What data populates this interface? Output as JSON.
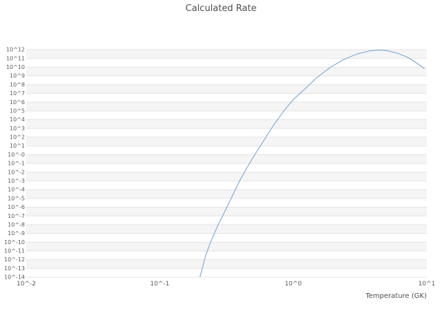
{
  "chart_data": {
    "type": "line",
    "title": "Calculated Rate",
    "xlabel": "Temperature (GK)",
    "ylabel": "",
    "x_scale": "log",
    "y_scale": "log",
    "xlim": [
      0.01,
      10
    ],
    "ylim": [
      1e-14,
      1000000000000.0
    ],
    "grid": "horizontal",
    "legend": "none",
    "xticks": [
      {
        "exp": -2,
        "label": "10^-2"
      },
      {
        "exp": -1,
        "label": "10^-1"
      },
      {
        "exp": 0,
        "label": "10^0"
      },
      {
        "exp": 1,
        "label": "10^1"
      }
    ],
    "yticks": [
      {
        "exp": 12,
        "label": "10^12"
      },
      {
        "exp": 11,
        "label": "10^11"
      },
      {
        "exp": 10,
        "label": "10^10"
      },
      {
        "exp": 9,
        "label": "10^9"
      },
      {
        "exp": 8,
        "label": "10^8"
      },
      {
        "exp": 7,
        "label": "10^7"
      },
      {
        "exp": 6,
        "label": "10^6"
      },
      {
        "exp": 5,
        "label": "10^5"
      },
      {
        "exp": 4,
        "label": "10^4"
      },
      {
        "exp": 3,
        "label": "10^3"
      },
      {
        "exp": 2,
        "label": "10^2"
      },
      {
        "exp": 1,
        "label": "10^1"
      },
      {
        "exp": 0,
        "label": "10^-0"
      },
      {
        "exp": -1,
        "label": "10^-1"
      },
      {
        "exp": -2,
        "label": "10^-2"
      },
      {
        "exp": -3,
        "label": "10^-3"
      },
      {
        "exp": -4,
        "label": "10^-4"
      },
      {
        "exp": -5,
        "label": "10^-5"
      },
      {
        "exp": -6,
        "label": "10^-6"
      },
      {
        "exp": -7,
        "label": "10^-7"
      },
      {
        "exp": -8,
        "label": "10^-8"
      },
      {
        "exp": -9,
        "label": "10^-9"
      },
      {
        "exp": -10,
        "label": "10^-10"
      },
      {
        "exp": -11,
        "label": "10^-11"
      },
      {
        "exp": -12,
        "label": "10^-12"
      },
      {
        "exp": -13,
        "label": "10^-13"
      },
      {
        "exp": -14,
        "label": "10^-14"
      }
    ],
    "series": [
      {
        "name": "calculated-rate",
        "color": "#76a8d8",
        "points": [
          [
            0.2,
            1e-14
          ],
          [
            0.22,
            2.5e-12
          ],
          [
            0.24,
            1e-10
          ],
          [
            0.27,
            6.3e-09
          ],
          [
            0.3,
            1.6e-07
          ],
          [
            0.35,
            2e-05
          ],
          [
            0.4,
            0.0013
          ],
          [
            0.45,
            0.032
          ],
          [
            0.5,
            0.5
          ],
          [
            0.6,
            40
          ],
          [
            0.7,
            1600.0
          ],
          [
            0.85,
            100000.0
          ],
          [
            1.0,
            2000000.0
          ],
          [
            1.2,
            25000000.0
          ],
          [
            1.5,
            630000000.0
          ],
          [
            1.9,
            10000000000.0
          ],
          [
            2.4,
            79000000000.0
          ],
          [
            3.0,
            320000000000.0
          ],
          [
            3.7,
            710000000000.0
          ],
          [
            4.3,
            890000000000.0
          ],
          [
            5.0,
            790000000000.0
          ],
          [
            6.0,
            400000000000.0
          ],
          [
            7.0,
            160000000000.0
          ],
          [
            8.0,
            50000000000.0
          ],
          [
            9.0,
            14000000000.0
          ],
          [
            9.6,
            6300000000.0
          ]
        ]
      }
    ],
    "colors": {
      "line": "#76a8d8",
      "grid": "#e3e3e3",
      "band": "#f5f5f5",
      "tick_text": "#595959"
    }
  }
}
